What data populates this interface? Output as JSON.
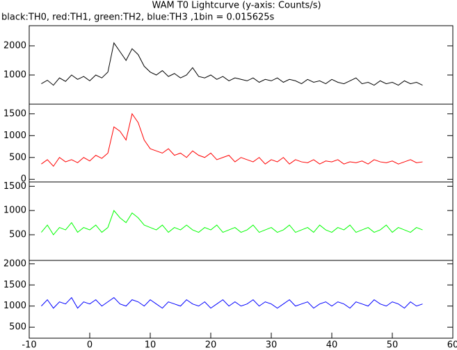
{
  "chart_data": [
    {
      "type": "line",
      "title": "WAM T0 Lightcurve (y-axis: Counts/s)",
      "subtitle": "black:TH0, red:TH1, green:TH2, blue:TH3 ,1bin = 0.015625s",
      "x": [
        -8,
        -7,
        -6,
        -5,
        -4,
        -3,
        -2,
        -1,
        0,
        1,
        2,
        3,
        4,
        5,
        6,
        7,
        8,
        9,
        10,
        11,
        12,
        13,
        14,
        15,
        16,
        17,
        18,
        19,
        20,
        21,
        22,
        23,
        24,
        25,
        26,
        27,
        28,
        29,
        30,
        31,
        32,
        33,
        34,
        35,
        36,
        37,
        38,
        39,
        40,
        41,
        42,
        43,
        44,
        45,
        46,
        47,
        48,
        49,
        50,
        51,
        52,
        53,
        54,
        55
      ],
      "series": [
        {
          "color": "#000000",
          "values": [
            700,
            820,
            650,
            900,
            780,
            1000,
            850,
            950,
            800,
            1000,
            900,
            1100,
            2100,
            1800,
            1500,
            1900,
            1700,
            1300,
            1100,
            1000,
            1150,
            950,
            1050,
            900,
            1000,
            1250,
            950,
            900,
            1000,
            850,
            950,
            800,
            900,
            850,
            800,
            900,
            750,
            850,
            800,
            900,
            750,
            850,
            800,
            700,
            850,
            750,
            800,
            700,
            850,
            750,
            700,
            800,
            900,
            700,
            750,
            650,
            800,
            700,
            750,
            650,
            800,
            700,
            750,
            650
          ]
        }
      ],
      "xlim": [
        -10,
        60
      ],
      "ylim": [
        0,
        2690
      ],
      "yticks": [
        1000,
        2000
      ]
    },
    {
      "type": "line",
      "x": [
        -8,
        -7,
        -6,
        -5,
        -4,
        -3,
        -2,
        -1,
        0,
        1,
        2,
        3,
        4,
        5,
        6,
        7,
        8,
        9,
        10,
        11,
        12,
        13,
        14,
        15,
        16,
        17,
        18,
        19,
        20,
        21,
        22,
        23,
        24,
        25,
        26,
        27,
        28,
        29,
        30,
        31,
        32,
        33,
        34,
        35,
        36,
        37,
        38,
        39,
        40,
        41,
        42,
        43,
        44,
        45,
        46,
        47,
        48,
        49,
        50,
        51,
        52,
        53,
        54,
        55
      ],
      "series": [
        {
          "color": "#ff0000",
          "values": [
            350,
            450,
            300,
            500,
            400,
            450,
            380,
            500,
            420,
            550,
            480,
            600,
            1200,
            1100,
            900,
            1500,
            1300,
            900,
            700,
            650,
            600,
            700,
            550,
            600,
            500,
            650,
            550,
            500,
            600,
            450,
            500,
            550,
            400,
            500,
            450,
            400,
            500,
            350,
            450,
            400,
            500,
            350,
            450,
            400,
            380,
            450,
            350,
            420,
            400,
            450,
            350,
            400,
            380,
            420,
            350,
            450,
            400,
            380,
            420,
            350,
            400,
            450,
            380,
            400
          ]
        }
      ],
      "xlim": [
        -10,
        60
      ],
      "ylim": [
        -60,
        1720
      ],
      "yticks": [
        0,
        500,
        1000,
        1500
      ]
    },
    {
      "type": "line",
      "x": [
        -8,
        -7,
        -6,
        -5,
        -4,
        -3,
        -2,
        -1,
        0,
        1,
        2,
        3,
        4,
        5,
        6,
        7,
        8,
        9,
        10,
        11,
        12,
        13,
        14,
        15,
        16,
        17,
        18,
        19,
        20,
        21,
        22,
        23,
        24,
        25,
        26,
        27,
        28,
        29,
        30,
        31,
        32,
        33,
        34,
        35,
        36,
        37,
        38,
        39,
        40,
        41,
        42,
        43,
        44,
        45,
        46,
        47,
        48,
        49,
        50,
        51,
        52,
        53,
        54,
        55
      ],
      "series": [
        {
          "color": "#00ff00",
          "values": [
            550,
            700,
            500,
            650,
            600,
            750,
            550,
            650,
            600,
            700,
            550,
            650,
            1000,
            850,
            750,
            950,
            850,
            700,
            650,
            600,
            700,
            550,
            650,
            600,
            700,
            600,
            550,
            650,
            600,
            700,
            550,
            600,
            650,
            550,
            600,
            700,
            550,
            600,
            650,
            550,
            600,
            700,
            550,
            600,
            650,
            550,
            700,
            600,
            550,
            650,
            600,
            700,
            550,
            600,
            650,
            550,
            600,
            700,
            550,
            650,
            600,
            550,
            650,
            600
          ]
        }
      ],
      "xlim": [
        -10,
        60
      ],
      "ylim": [
        -30,
        1590
      ],
      "yticks": [
        500,
        1000,
        1500
      ]
    },
    {
      "type": "line",
      "x": [
        -8,
        -7,
        -6,
        -5,
        -4,
        -3,
        -2,
        -1,
        0,
        1,
        2,
        3,
        4,
        5,
        6,
        7,
        8,
        9,
        10,
        11,
        12,
        13,
        14,
        15,
        16,
        17,
        18,
        19,
        20,
        21,
        22,
        23,
        24,
        25,
        26,
        27,
        28,
        29,
        30,
        31,
        32,
        33,
        34,
        35,
        36,
        37,
        38,
        39,
        40,
        41,
        42,
        43,
        44,
        45,
        46,
        47,
        48,
        49,
        50,
        51,
        52,
        53,
        54,
        55
      ],
      "series": [
        {
          "color": "#0000ff",
          "values": [
            1000,
            1150,
            950,
            1100,
            1050,
            1200,
            950,
            1100,
            1050,
            1150,
            1000,
            1100,
            1200,
            1050,
            1000,
            1150,
            1100,
            1000,
            1150,
            1050,
            950,
            1100,
            1050,
            1000,
            1150,
            1050,
            1000,
            1100,
            950,
            1050,
            1150,
            1000,
            1100,
            1000,
            1050,
            1150,
            1000,
            1100,
            1050,
            950,
            1050,
            1150,
            1000,
            1050,
            1100,
            950,
            1050,
            1100,
            1000,
            1100,
            1050,
            950,
            1100,
            1050,
            1000,
            1150,
            1050,
            1000,
            1100,
            1050,
            950,
            1100,
            1000,
            1050
          ]
        }
      ],
      "xlim": [
        -10,
        60
      ],
      "ylim": [
        240,
        2080
      ],
      "yticks": [
        500,
        1000,
        1500,
        2000
      ],
      "xticks": [
        -10,
        0,
        10,
        20,
        30,
        40,
        50,
        60
      ]
    }
  ]
}
